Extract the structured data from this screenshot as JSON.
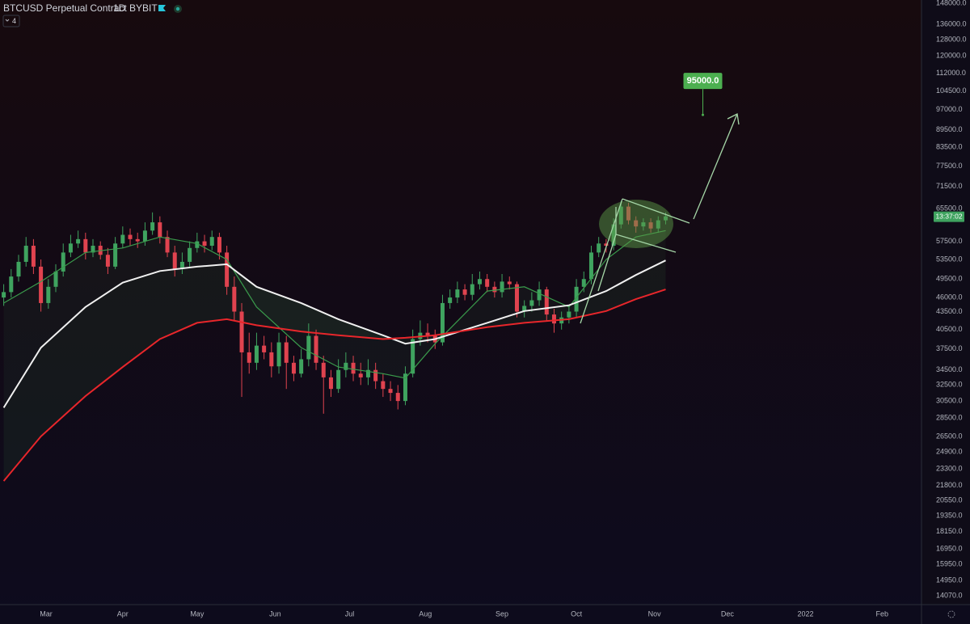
{
  "header": {
    "symbol": "BTCUSD Perpetual Contract",
    "interval": "1D",
    "exchange": "BYBIT",
    "indicators": "4"
  },
  "chart_data": {
    "type": "candlestick",
    "log_scale": true,
    "grid": false,
    "up_color": "#3fa35f",
    "down_color": "#e0434f",
    "xlim": [
      -0.5,
      123.4
    ],
    "ylim": [
      13590,
      149900
    ],
    "xticks": [
      {
        "value": 5.7,
        "label": "Mar"
      },
      {
        "value": 16.0,
        "label": "Apr"
      },
      {
        "value": 26.0,
        "label": "May"
      },
      {
        "value": 36.5,
        "label": "Jun"
      },
      {
        "value": 46.5,
        "label": "Jul"
      },
      {
        "value": 56.7,
        "label": "Aug"
      },
      {
        "value": 67.0,
        "label": "Sep"
      },
      {
        "value": 77.0,
        "label": "Oct"
      },
      {
        "value": 87.5,
        "label": "Nov"
      },
      {
        "value": 97.3,
        "label": "Dec"
      },
      {
        "value": 107.8,
        "label": "2022"
      },
      {
        "value": 118.1,
        "label": "Feb"
      }
    ],
    "yticks": [
      {
        "value": 148000,
        "label": "148000.0"
      },
      {
        "value": 136000,
        "label": "136000.0"
      },
      {
        "value": 128000,
        "label": "128000.0"
      },
      {
        "value": 120000,
        "label": "120000.0"
      },
      {
        "value": 112000,
        "label": "112000.0"
      },
      {
        "value": 104500,
        "label": "104500.0"
      },
      {
        "value": 97000,
        "label": "97000.0"
      },
      {
        "value": 89500,
        "label": "89500.0"
      },
      {
        "value": 83500,
        "label": "83500.0"
      },
      {
        "value": 77500,
        "label": "77500.0"
      },
      {
        "value": 71500,
        "label": "71500.0"
      },
      {
        "value": 65500,
        "label": "65500.0"
      },
      {
        "value": 57500,
        "label": "57500.0"
      },
      {
        "value": 53500,
        "label": "53500.0"
      },
      {
        "value": 49500,
        "label": "49500.0"
      },
      {
        "value": 46000,
        "label": "46000.0"
      },
      {
        "value": 43500,
        "label": "43500.0"
      },
      {
        "value": 40500,
        "label": "40500.0"
      },
      {
        "value": 37500,
        "label": "37500.0"
      },
      {
        "value": 34500,
        "label": "34500.0"
      },
      {
        "value": 32500,
        "label": "32500.0"
      },
      {
        "value": 30500,
        "label": "30500.0"
      },
      {
        "value": 28500,
        "label": "28500.0"
      },
      {
        "value": 26500,
        "label": "26500.0"
      },
      {
        "value": 24900,
        "label": "24900.0"
      },
      {
        "value": 23300,
        "label": "23300.0"
      },
      {
        "value": 21800,
        "label": "21800.0"
      },
      {
        "value": 20550,
        "label": "20550.0"
      },
      {
        "value": 19350,
        "label": "19350.0"
      },
      {
        "value": 18150,
        "label": "18150.0"
      },
      {
        "value": 16950,
        "label": "16950.0"
      },
      {
        "value": 15950,
        "label": "15950.0"
      },
      {
        "value": 14950,
        "label": "14950.0"
      },
      {
        "value": 14070,
        "label": "14070.0"
      }
    ],
    "open": [
      46000,
      47000,
      50000,
      53000,
      56500,
      52000,
      45000,
      48000,
      51000,
      55000,
      57000,
      58000,
      55000,
      56500,
      54500,
      52000,
      57000,
      59000,
      58000,
      57500,
      60000,
      62000,
      58500,
      55000,
      51500,
      53000,
      56000,
      57500,
      56500,
      58500,
      55000,
      48000,
      43500,
      37000,
      35500,
      38000,
      37000,
      35000,
      38500,
      35500,
      34000,
      36000,
      39500,
      35500,
      33500,
      32000,
      34500,
      35500,
      34000,
      33500,
      34500,
      33000,
      32000,
      31500,
      30500,
      34000,
      39000,
      40000,
      39500,
      38500,
      45000,
      46000,
      47500,
      46500,
      48500,
      49500,
      48000,
      47000,
      49000,
      48500,
      43500,
      44500,
      45500,
      47500,
      43000,
      41500,
      42500,
      43500,
      48000,
      49500,
      55000,
      57000,
      56500,
      61500,
      66000,
      62500,
      61000,
      62000,
      60500,
      62500
    ],
    "high": [
      48500,
      51500,
      54500,
      58500,
      58000,
      53500,
      49500,
      52500,
      57000,
      59000,
      60000,
      59500,
      58000,
      57500,
      56000,
      58500,
      61000,
      60500,
      59500,
      62000,
      64500,
      63500,
      60000,
      56500,
      55000,
      57500,
      59500,
      59000,
      60000,
      59500,
      56500,
      50000,
      45000,
      40000,
      40000,
      39500,
      38500,
      40000,
      39500,
      36500,
      37500,
      41500,
      40500,
      36500,
      34500,
      36000,
      37000,
      36500,
      35500,
      36000,
      35500,
      34000,
      33000,
      32500,
      35000,
      40500,
      42000,
      41500,
      40500,
      46500,
      47500,
      49000,
      48500,
      50500,
      51000,
      50500,
      49000,
      50500,
      50000,
      49000,
      45500,
      47000,
      49000,
      48000,
      44000,
      43500,
      44500,
      49500,
      51000,
      56500,
      58500,
      58000,
      63000,
      67500,
      67000,
      63500,
      63000,
      63000,
      63500,
      64500
    ],
    "low": [
      44500,
      46000,
      49000,
      52000,
      50500,
      43500,
      44000,
      47000,
      50000,
      54000,
      56000,
      53500,
      54000,
      53500,
      50500,
      51500,
      56000,
      56500,
      56000,
      56500,
      59000,
      57000,
      54000,
      50000,
      50500,
      52000,
      55000,
      55000,
      55500,
      53500,
      46500,
      42000,
      31000,
      34000,
      34500,
      36000,
      33500,
      34000,
      32000,
      33000,
      33500,
      35000,
      34500,
      29000,
      31000,
      31500,
      33500,
      33000,
      32500,
      32500,
      32000,
      31000,
      30500,
      29500,
      30000,
      33500,
      38000,
      38500,
      37500,
      38000,
      44000,
      45000,
      45500,
      45500,
      47500,
      47000,
      46000,
      46000,
      47500,
      42500,
      42500,
      43500,
      44500,
      42000,
      40000,
      40500,
      41500,
      42500,
      47000,
      48500,
      54000,
      55000,
      55500,
      60500,
      61500,
      59500,
      60000,
      59500,
      59500,
      61500
    ],
    "close": [
      47000,
      50000,
      53000,
      56500,
      52000,
      45000,
      48000,
      51000,
      55000,
      57000,
      58000,
      55000,
      56500,
      54500,
      52000,
      57000,
      59000,
      58000,
      57500,
      60000,
      62000,
      58500,
      55000,
      51500,
      53000,
      56000,
      57500,
      56500,
      58500,
      55000,
      48000,
      43500,
      37000,
      35500,
      38000,
      37000,
      35000,
      38500,
      35500,
      34000,
      36000,
      39500,
      35500,
      33500,
      32000,
      34500,
      35500,
      34000,
      33500,
      34500,
      33000,
      32000,
      31500,
      30500,
      34000,
      39000,
      40000,
      39500,
      38500,
      45000,
      46000,
      47500,
      46500,
      48500,
      49500,
      48000,
      47000,
      49000,
      48500,
      43500,
      44500,
      45500,
      47500,
      43000,
      41500,
      42500,
      43500,
      48000,
      49500,
      55000,
      57000,
      56500,
      61500,
      66000,
      62500,
      61000,
      62000,
      60500,
      62500,
      63500
    ],
    "series": [
      {
        "color": "#3a9b4c",
        "x": [
          0,
          5,
          11,
          16,
          21,
          26,
          30,
          34,
          40,
          45,
          51,
          54,
          58,
          65,
          70,
          76,
          81,
          85,
          89
        ],
        "values": [
          45000,
          49000,
          55000,
          56000,
          58500,
          57000,
          53500,
          44300,
          37700,
          34900,
          34000,
          33400,
          38300,
          47200,
          48000,
          44300,
          53500,
          58500,
          60000
        ]
      },
      {
        "color": "#f0f0f0",
        "x": [
          0,
          5,
          11,
          16,
          21,
          26,
          30,
          34,
          40,
          45,
          51,
          54,
          58,
          65,
          70,
          76,
          81,
          85,
          89
        ],
        "values": [
          29700,
          37700,
          44300,
          48800,
          51100,
          52000,
          52500,
          48000,
          45000,
          42200,
          39600,
          38300,
          39000,
          41600,
          43600,
          44600,
          47200,
          50300,
          53300
        ]
      },
      {
        "color": "#e8262b",
        "x": [
          0,
          5,
          11,
          16,
          21,
          26,
          30,
          34,
          40,
          45,
          51,
          54,
          58,
          65,
          70,
          76,
          81,
          85,
          89
        ],
        "values": [
          22200,
          26500,
          31100,
          34900,
          39000,
          41600,
          42200,
          41200,
          40200,
          39600,
          39000,
          39200,
          39600,
          40900,
          41600,
          42200,
          43600,
          45700,
          47500
        ]
      }
    ],
    "annotation": {
      "x": 94,
      "value": 95000,
      "label": "95000.0"
    },
    "countdown": "13:37:02"
  }
}
